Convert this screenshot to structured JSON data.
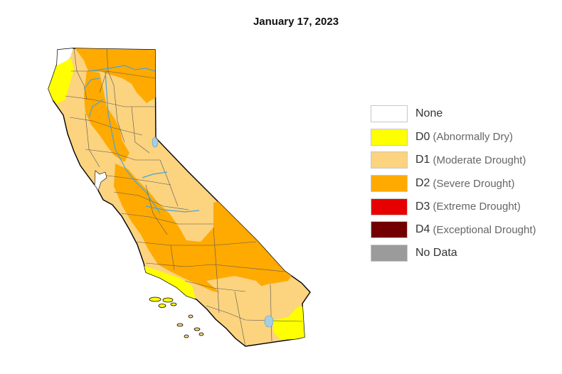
{
  "title": "January 17, 2023",
  "colors": {
    "none": "#ffffff",
    "d0": "#ffff00",
    "d1": "#fcd37f",
    "d2": "#ffaa00",
    "d3": "#e60000",
    "d4": "#730000",
    "nodata": "#9b9b9b",
    "water": "#a6cee3",
    "river": "#4aa3d6",
    "border": "#000000",
    "county": "#555555"
  },
  "legend": {
    "items": [
      {
        "code": "None",
        "desc": "",
        "color": "#ffffff"
      },
      {
        "code": "D0",
        "desc": "(Abnormally Dry)",
        "color": "#ffff00"
      },
      {
        "code": "D1",
        "desc": "(Moderate Drought)",
        "color": "#fcd37f"
      },
      {
        "code": "D2",
        "desc": "(Severe Drought)",
        "color": "#ffaa00"
      },
      {
        "code": "D3",
        "desc": "(Extreme Drought)",
        "color": "#e60000"
      },
      {
        "code": "D4",
        "desc": "(Exceptional Drought)",
        "color": "#730000"
      },
      {
        "code": "No Data",
        "desc": "",
        "color": "#9b9b9b"
      }
    ]
  }
}
